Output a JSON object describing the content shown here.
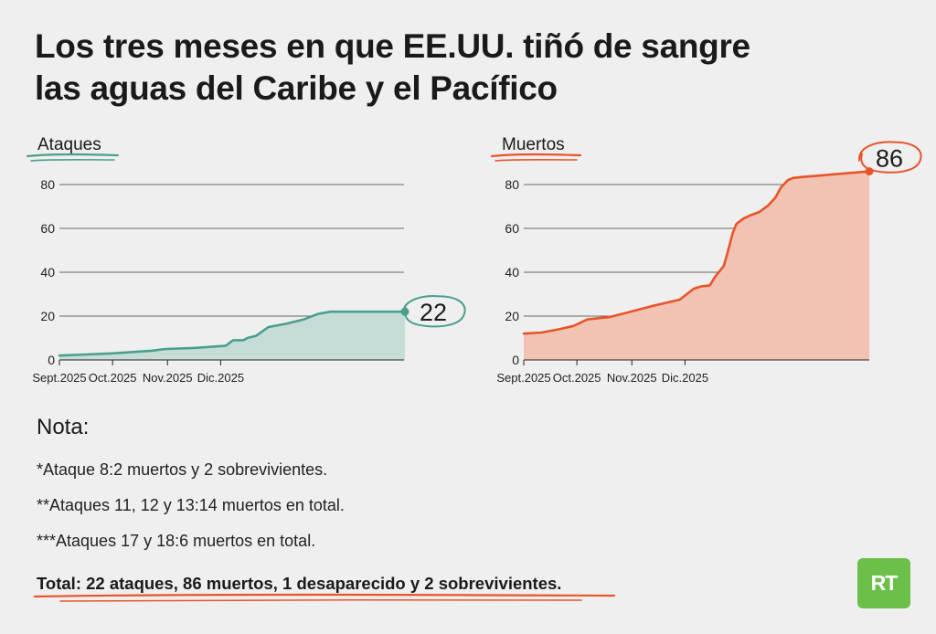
{
  "title_line1": "Los tres meses en que EE.UU. tiñó de sangre",
  "title_line2": "las aguas del Caribe y el Pacífico",
  "chart_data": [
    {
      "type": "area",
      "title": "Ataques",
      "color": "#4a9e8e",
      "fill": "#c6ddd7",
      "x_ticks": [
        "Sept.2025",
        "Oct.2025",
        "Nov.2025",
        "Dic.2025"
      ],
      "y_ticks": [
        0,
        20,
        40,
        60,
        80
      ],
      "ylim": [
        0,
        88
      ],
      "grid": true,
      "final_label": "22",
      "x": [
        0,
        15,
        30,
        52,
        60,
        77,
        94,
        98,
        104,
        106,
        111,
        118,
        128,
        138,
        146,
        153,
        158,
        175,
        195
      ],
      "values": [
        2,
        2.5,
        3,
        4.2,
        5,
        5.5,
        6.5,
        9,
        9,
        10,
        11,
        15,
        16.5,
        18.5,
        21,
        22,
        22,
        22,
        22
      ]
    },
    {
      "type": "area",
      "title": "Muertos",
      "color": "#e8542a",
      "fill": "#f2c3b2",
      "x_ticks": [
        "Sept.2025",
        "Oct.2025",
        "Nov.2025",
        "Dic.2025"
      ],
      "y_ticks": [
        0,
        20,
        40,
        60,
        80
      ],
      "ylim": [
        0,
        88
      ],
      "grid": true,
      "final_label": "86",
      "x": [
        0,
        10,
        20,
        28,
        36,
        48,
        58,
        72,
        88,
        96,
        100,
        105,
        108,
        113,
        116,
        118,
        120,
        124,
        128,
        133,
        138,
        142,
        145,
        149,
        152,
        158,
        195
      ],
      "values": [
        12,
        12.5,
        14,
        15.5,
        18.5,
        19.5,
        21.5,
        24.5,
        27.5,
        32.5,
        33.5,
        34,
        38,
        43,
        52,
        58,
        62,
        64.5,
        66,
        67.5,
        70.5,
        74,
        78.5,
        82,
        83,
        83.5,
        86
      ]
    }
  ],
  "nota": {
    "heading": "Nota:",
    "items": [
      "*Ataque 8:2 muertos y 2 sobrevivientes.",
      "**Ataques 11, 12 y 13:14 muertos en total.",
      "***Ataques 17 y 18:6 muertos en total."
    ],
    "total": "Total: 22 ataques, 86 muertos, 1 desaparecido y 2 sobrevivientes."
  },
  "logo_text": "RT",
  "colors": {
    "background": "#efefef",
    "attacks": "#4a9e8e",
    "deaths": "#e8542a",
    "logo": "#6cc04a"
  }
}
